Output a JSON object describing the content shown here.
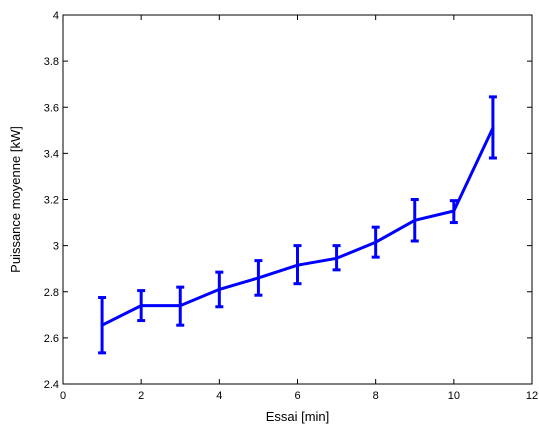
{
  "chart_data": {
    "type": "line",
    "title": "",
    "xlabel": "Essai [min]",
    "ylabel": "Puissance moyenne [kW]",
    "xlim": [
      0,
      12
    ],
    "ylim": [
      2.4,
      4
    ],
    "xticks": [
      0,
      2,
      4,
      6,
      8,
      10,
      12
    ],
    "yticks": [
      2.4,
      2.6,
      2.8,
      3,
      3.2,
      3.4,
      3.6,
      3.8,
      4
    ],
    "xtick_labels": [
      "0",
      "2",
      "4",
      "6",
      "8",
      "10",
      "12"
    ],
    "ytick_labels": [
      "2.4",
      "2.6",
      "2.8",
      "3",
      "3.2",
      "3.4",
      "3.6",
      "3.8",
      "4"
    ],
    "grid": false,
    "series": [
      {
        "color": "#0000ff",
        "x": [
          1,
          2,
          3,
          4,
          5,
          6,
          7,
          8,
          9,
          10,
          11
        ],
        "y": [
          2.655,
          2.74,
          2.74,
          2.81,
          2.86,
          2.915,
          2.945,
          3.015,
          3.11,
          3.15,
          3.51
        ],
        "error_low": [
          2.535,
          2.675,
          2.655,
          2.735,
          2.785,
          2.835,
          2.895,
          2.95,
          3.02,
          3.1,
          3.38
        ],
        "error_high": [
          2.775,
          2.805,
          2.82,
          2.885,
          2.935,
          3.0,
          3.0,
          3.08,
          3.2,
          3.195,
          3.645
        ]
      }
    ]
  }
}
